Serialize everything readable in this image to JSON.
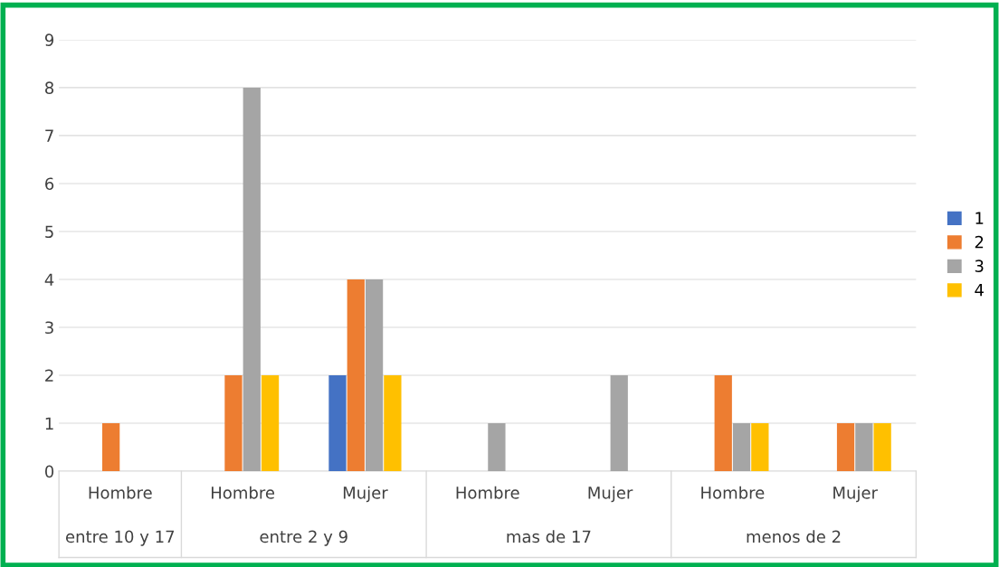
{
  "chart_data": {
    "type": "bar",
    "categories": [
      "Hombre",
      "Hombre",
      "Mujer",
      "Hombre",
      "Mujer",
      "Hombre",
      "Mujer"
    ],
    "annotations": [
      "entre 10 y 17",
      "entre 2 y 9",
      "mas de 17",
      "menos de 2"
    ],
    "series": [
      {
        "name": "1",
        "color": "#4472c4",
        "values": [
          null,
          null,
          2,
          null,
          null,
          null,
          null
        ]
      },
      {
        "name": "2",
        "color": "#ed7d31",
        "values": [
          1,
          2,
          4,
          null,
          null,
          2,
          1
        ]
      },
      {
        "name": "3",
        "color": "#a5a5a5",
        "values": [
          null,
          8,
          4,
          1,
          2,
          1,
          1
        ]
      },
      {
        "name": "4",
        "color": "#ffc000",
        "values": [
          null,
          2,
          2,
          null,
          null,
          1,
          1
        ]
      }
    ],
    "ylim": [
      0,
      9
    ],
    "yticks": [
      0,
      1,
      2,
      3,
      4,
      5,
      6,
      7,
      8,
      9
    ],
    "grid": "y",
    "legend": "right"
  }
}
